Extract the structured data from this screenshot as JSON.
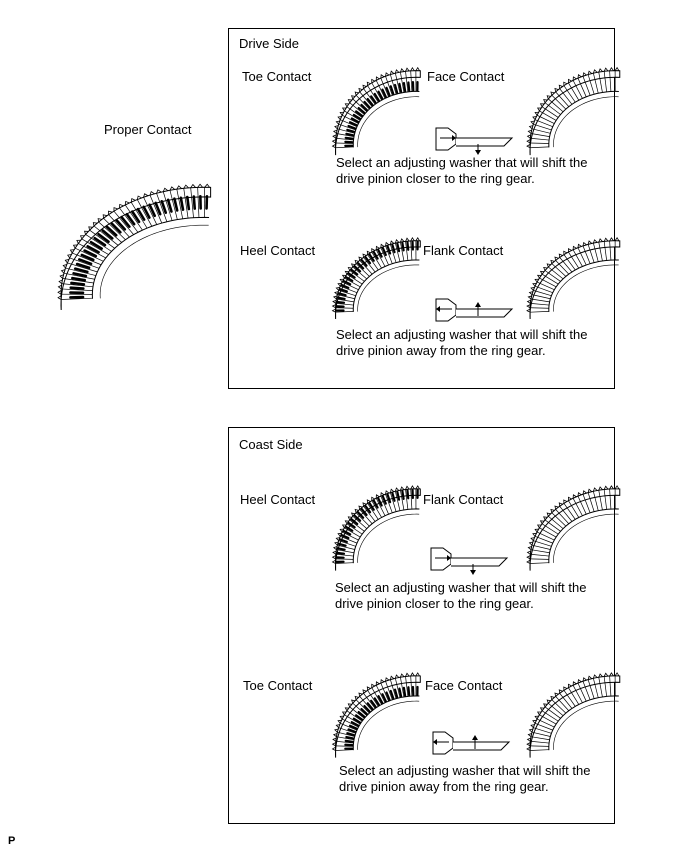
{
  "proper": {
    "label": "Proper Contact"
  },
  "drive": {
    "title": "Drive Side",
    "rows": [
      {
        "left_label": "Toe Contact",
        "right_label": "Face Contact",
        "instruction_line1": "Select an adjusting washer that will shift the",
        "instruction_line2": "drive pinion closer to the ring gear.",
        "arrow": "down"
      },
      {
        "left_label": "Heel Contact",
        "right_label": "Flank Contact",
        "instruction_line1": "Select an adjusting washer that will shift the",
        "instruction_line2": "drive pinion away from the ring gear.",
        "arrow": "up"
      }
    ]
  },
  "coast": {
    "title": "Coast Side",
    "rows": [
      {
        "left_label": "Heel Contact",
        "right_label": "Flank Contact",
        "instruction_line1": "Select an adjusting washer that will shift the",
        "instruction_line2": "drive pinion closer to the ring gear.",
        "arrow": "down"
      },
      {
        "left_label": "Toe Contact",
        "right_label": "Face Contact",
        "instruction_line1": "Select an adjusting washer that will shift the",
        "instruction_line2": "drive pinion away from the ring gear.",
        "arrow": "up"
      }
    ]
  },
  "footer": {
    "code": "P"
  }
}
